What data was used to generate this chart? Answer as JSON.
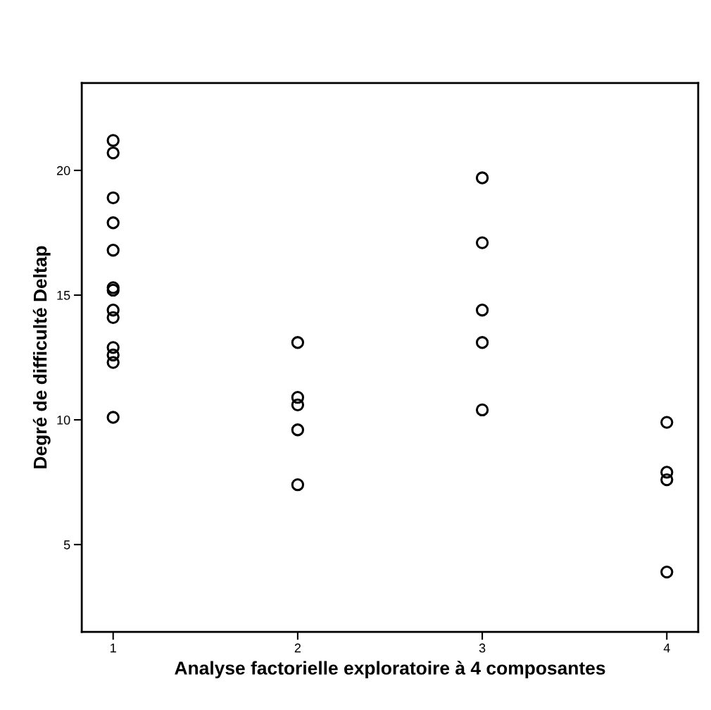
{
  "chart_data": {
    "type": "scatter",
    "xlabel": "Analyse factorielle exploratoire à 4 composantes",
    "ylabel": "Degré de difficulté Deltap",
    "xlim": [
      0.83,
      4.17
    ],
    "ylim": [
      1.5,
      23.5
    ],
    "xticks": [
      1,
      2,
      3,
      4
    ],
    "yticks": [
      5,
      10,
      15,
      20
    ],
    "grid": false,
    "marker": "circle",
    "series": [
      {
        "color": "#000000",
        "x": [
          1,
          1,
          1,
          1,
          1,
          1,
          1,
          1,
          1,
          1,
          1,
          1,
          1,
          2,
          2,
          2,
          2,
          2,
          3,
          3,
          3,
          3,
          3,
          4,
          4,
          4,
          4
        ],
        "values": [
          21.2,
          20.7,
          18.9,
          17.9,
          16.8,
          15.3,
          15.2,
          14.4,
          14.1,
          12.9,
          12.6,
          12.3,
          10.1,
          13.1,
          10.9,
          10.6,
          9.6,
          7.4,
          19.7,
          17.1,
          14.4,
          13.1,
          10.4,
          9.9,
          7.9,
          7.6,
          3.9
        ]
      }
    ]
  }
}
